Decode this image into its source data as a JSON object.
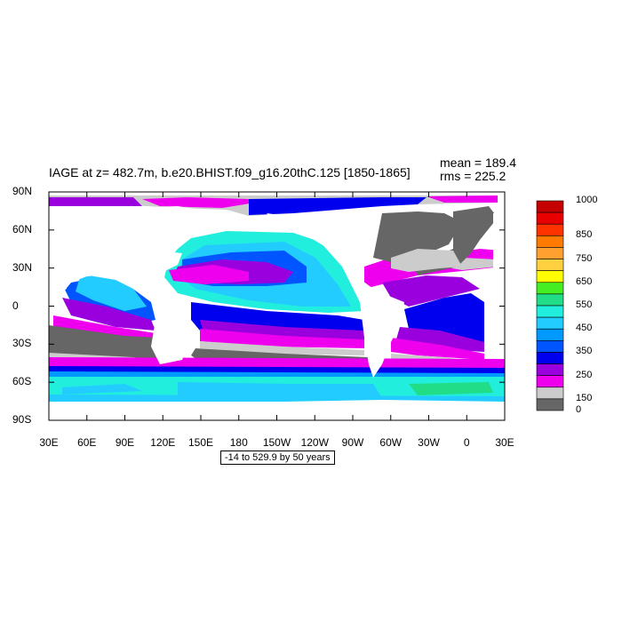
{
  "title": "IAGE at z= 482.7m, b.e20.BHIST.f09_g16.20thC.125 [1850-1865]",
  "stats": {
    "mean": "mean = 189.4",
    "rms": "rms = 225.2"
  },
  "range_label": "-14 to 529.9 by 50 years",
  "axes": {
    "lon_ticks": [
      "30E",
      "60E",
      "90E",
      "120E",
      "150E",
      "180",
      "150W",
      "120W",
      "90W",
      "60W",
      "30W",
      "0",
      "30E"
    ],
    "lat_ticks": [
      "90N",
      "60N",
      "30N",
      "0",
      "30S",
      "60S",
      "90S"
    ]
  },
  "colorbar": {
    "labels": [
      "1000",
      "850",
      "750",
      "650",
      "550",
      "450",
      "350",
      "250",
      "150",
      "0"
    ],
    "colors": [
      "#c40000",
      "#e80000",
      "#ff3300",
      "#ff7a00",
      "#ffa030",
      "#ffd040",
      "#ffff00",
      "#44ee22",
      "#22dd88",
      "#22eedd",
      "#22ccff",
      "#0099ff",
      "#0055ff",
      "#0000ee",
      "#9900dd",
      "#ee00ee",
      "#cccccc",
      "#666666"
    ]
  },
  "chart_data": {
    "type": "heatmap",
    "title": "IAGE at z= 482.7m, b.e20.BHIST.f09_g16.20thC.125 [1850-1865]",
    "variable": "IAGE",
    "depth": "482.7m",
    "mean": 189.4,
    "rms": 225.2,
    "range_min": -14,
    "range_max": 529.9,
    "contour_interval": 50,
    "lon_range": [
      30,
      390
    ],
    "lat_range": [
      -90,
      90
    ]
  }
}
